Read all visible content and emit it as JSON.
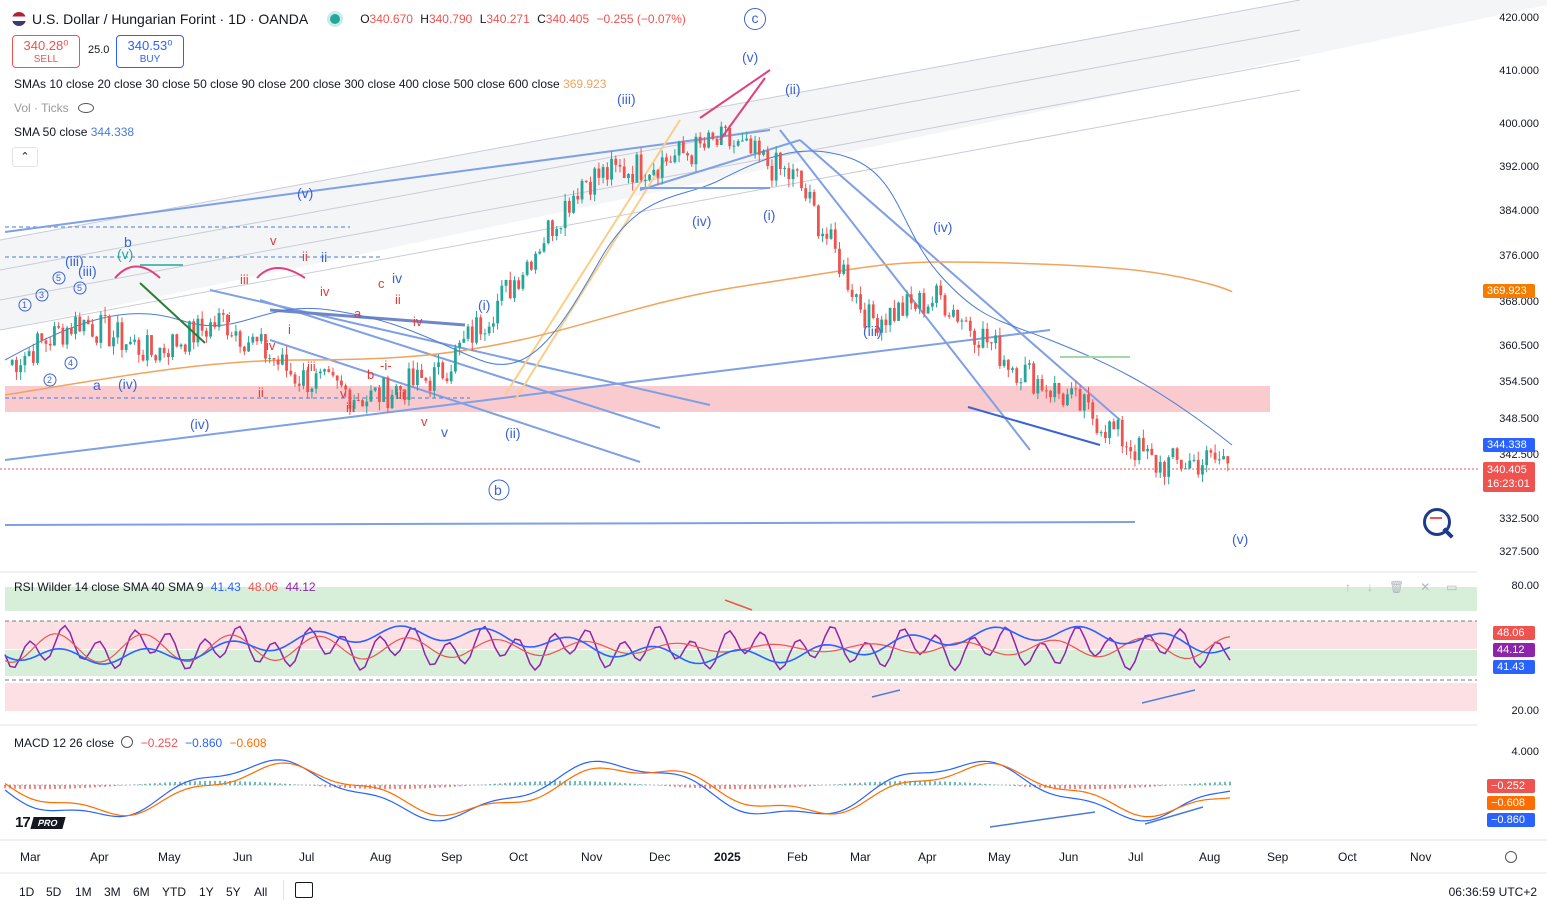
{
  "header": {
    "symbol": "U.S. Dollar / Hungarian Forint · 1D · OANDA",
    "o_label": "O",
    "o": "340.670",
    "h_label": "H",
    "h": "340.790",
    "l_label": "L",
    "l": "340.271",
    "c_label": "C",
    "c": "340.405",
    "change": "−0.255 (−0.07%)",
    "sell_price": "340.28⁰",
    "sell_label": "SELL",
    "spread": "25.0",
    "buy_price": "340.53⁰",
    "buy_label": "BUY",
    "wave_marker": "c"
  },
  "indicators": {
    "smas_label": "SMAs 10 close 20 close 30 close 50 close 90 close 200 close 300 close 400 close 500 close 600 close",
    "smas_value": "369.923",
    "vol_label": "Vol · Ticks",
    "sma50_label": "SMA 50 close",
    "sma50_value": "344.338",
    "rsi_label": "RSI Wilder 14 close SMA 40 SMA 9",
    "rsi_v1": "41.43",
    "rsi_v2": "48.06",
    "rsi_v3": "44.12",
    "macd_label": "MACD 12 26 close",
    "macd_v1": "−0.252",
    "macd_v2": "−0.860",
    "macd_v3": "−0.608"
  },
  "price_axis": [
    "420.000",
    "410.000",
    "400.000",
    "392.000",
    "384.000",
    "376.000",
    "368.000",
    "360.500",
    "354.500",
    "348.500",
    "342.500",
    "332.500",
    "327.500"
  ],
  "price_tags": {
    "sma_orange": "369.923",
    "sma50": "344.338",
    "last": "340.405",
    "countdown": "16:23:01"
  },
  "rsi_axis": [
    "80.00",
    "20.00"
  ],
  "rsi_tags": [
    "48.06",
    "44.12",
    "41.43"
  ],
  "macd_axis": [
    "4.000"
  ],
  "macd_tags": [
    "−0.252",
    "−0.608",
    "−0.860"
  ],
  "time_axis": [
    "Mar",
    "Apr",
    "May",
    "Jun",
    "Jul",
    "Aug",
    "Sep",
    "Oct",
    "Nov",
    "Dec",
    "2025",
    "Feb",
    "Mar",
    "Apr",
    "May",
    "Jun",
    "Jul",
    "Aug",
    "Sep",
    "Oct",
    "Nov"
  ],
  "timeframes": [
    "1D",
    "5D",
    "1M",
    "3M",
    "6M",
    "YTD",
    "1Y",
    "5Y",
    "All"
  ],
  "clock": "06:36:59 UTC+2",
  "logo": "PRO",
  "wave_labels": {
    "top_v": "(v)",
    "ii_top": "(ii)",
    "iii_top": "(iii)",
    "iv_mid": "(iv)",
    "i_mid": "(i)",
    "iv_right": "(iv)",
    "iii_right": "(iii)",
    "v_bottom": "(v)",
    "b_circle": "b",
    "v_left": "(v)",
    "iv_left": "(iv)",
    "ii_left": "(ii)",
    "i_left": "(i)"
  },
  "colors": {
    "up": "#26a69a",
    "down": "#ef5350",
    "sma_orange": "#f2a35c",
    "sma_blue": "#4a7bd8",
    "rsi": "#7b1fa2",
    "macd": "#2962ff",
    "signal": "#ff6d00",
    "band": "#f8c1c6"
  },
  "chart_data": {
    "type": "candlestick",
    "title": "U.S. Dollar / Hungarian Forint · 1D · OANDA",
    "ylim": [
      325,
      422
    ],
    "x": [
      "Mar",
      "Apr",
      "May",
      "Jun",
      "Jul",
      "Aug",
      "Sep",
      "Oct",
      "Nov",
      "Dec",
      "2025",
      "Feb",
      "Mar",
      "Apr",
      "May",
      "Jun",
      "Jul",
      "Aug"
    ],
    "close": [
      358,
      366,
      360,
      366,
      356,
      352,
      356,
      372,
      391,
      394,
      398,
      391,
      366,
      370,
      358,
      350,
      340,
      341
    ],
    "sma_orange": [
      356,
      357,
      357,
      358,
      358,
      360,
      361,
      364,
      367,
      369,
      372,
      375,
      377,
      377,
      376,
      375,
      373,
      370
    ],
    "sma50": [
      360,
      361,
      360,
      361,
      360,
      357,
      356,
      360,
      376,
      390,
      395,
      395,
      382,
      370,
      360,
      355,
      352,
      344
    ]
  }
}
